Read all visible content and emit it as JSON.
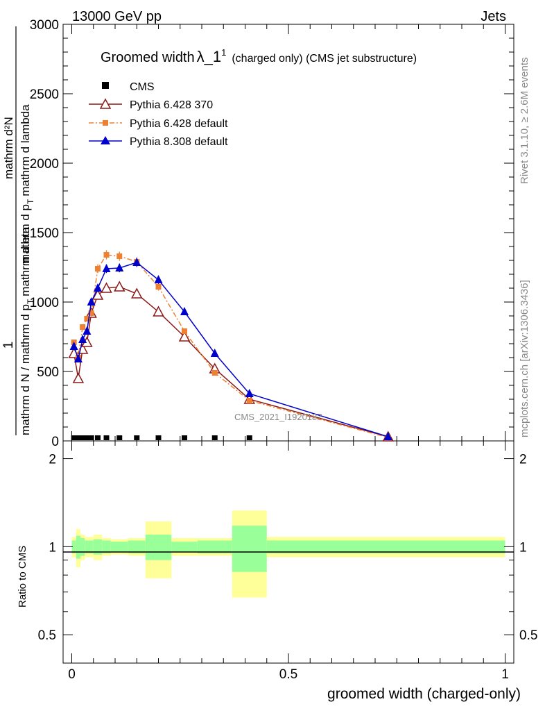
{
  "header": {
    "left": "13000 GeV pp",
    "right": "Jets"
  },
  "side": {
    "rivet": "Rivet 3.1.10, ≥ 2.6M events",
    "mcplots": "mcplots.cern.ch [arXiv:1306.3436]"
  },
  "colors": {
    "cms": "#000000",
    "py6_370": "#8b1a1a",
    "py6_default": "#f08030",
    "py8": "#0000cc",
    "band_inner": "#99ff99",
    "band_outer": "#ffff99"
  },
  "chart_data": [
    {
      "type": "line",
      "title": "Groomed width λ_1^1 (charged only) (CMS jet substructure)",
      "title_main": "Groomed width",
      "title_sym": "λ_1",
      "title_sup": "1",
      "title_rest": "(charged only) (CMS jet substructure)",
      "ylabel": "1 / mathrm d N / mathrm d p_T mathrm d eta   mathrm d^2N / mathrm d p_T mathrm d lambda",
      "ylabel_parts": {
        "one": "1",
        "lower": "mathrm d N / mathrm d p",
        "lower_sub": "T",
        "lower_rest": "mathrm d eta",
        "upper": "mathrm d²N",
        "upper_rest": "mathrm d p",
        "upper_sub": "T",
        "upper_end": "mathrm d lambda"
      },
      "watermark": "CMS_2021_I1920187",
      "xlim": [
        -0.02,
        1.02
      ],
      "ylim": [
        0,
        3000
      ],
      "yticks": [
        0,
        500,
        1000,
        1500,
        2000,
        2500,
        3000
      ],
      "ytick_labels": [
        "0",
        "500",
        "1000",
        "1500",
        "2000",
        "2500",
        "3000"
      ],
      "legend": [
        {
          "name": "CMS",
          "marker": "square"
        },
        {
          "name": "Pythia 6.428 370",
          "marker": "open-triangle"
        },
        {
          "name": "Pythia 6.428 default",
          "marker": "small-square"
        },
        {
          "name": "Pythia 8.308 default",
          "marker": "filled-triangle"
        }
      ],
      "series": [
        {
          "name": "CMS",
          "x": [
            0.005,
            0.015,
            0.025,
            0.035,
            0.045,
            0.06,
            0.08,
            0.11,
            0.15,
            0.2,
            0.26,
            0.33,
            0.41,
            0.73
          ],
          "y": [
            0,
            0,
            0,
            0,
            0,
            0,
            0,
            0,
            0,
            0,
            0,
            0,
            0,
            0
          ]
        },
        {
          "name": "Pythia 6.428 370",
          "x": [
            0.005,
            0.015,
            0.025,
            0.035,
            0.045,
            0.06,
            0.08,
            0.11,
            0.15,
            0.2,
            0.26,
            0.33,
            0.41,
            0.73
          ],
          "y": [
            630,
            450,
            660,
            710,
            920,
            1050,
            1100,
            1110,
            1060,
            930,
            750,
            520,
            300,
            30
          ]
        },
        {
          "name": "Pythia 6.428 default",
          "x": [
            0.005,
            0.015,
            0.025,
            0.035,
            0.045,
            0.06,
            0.08,
            0.11,
            0.15,
            0.2,
            0.26,
            0.33,
            0.41,
            0.73
          ],
          "y": [
            710,
            600,
            820,
            880,
            920,
            1240,
            1340,
            1330,
            1290,
            1110,
            790,
            490,
            290,
            25
          ]
        },
        {
          "name": "Pythia 8.308 default",
          "x": [
            0.005,
            0.015,
            0.025,
            0.035,
            0.045,
            0.06,
            0.08,
            0.11,
            0.15,
            0.2,
            0.26,
            0.33,
            0.41,
            0.73
          ],
          "y": [
            680,
            590,
            730,
            790,
            1000,
            1100,
            1240,
            1245,
            1285,
            1160,
            930,
            630,
            340,
            30
          ]
        }
      ]
    },
    {
      "type": "area",
      "xlabel": "groomed width (charged-only)",
      "ylabel": "Ratio to CMS",
      "ylim": [
        0.4,
        2.3
      ],
      "xlim": [
        -0.02,
        1.02
      ],
      "xticks": [
        0,
        0.5,
        1
      ],
      "xtick_labels": [
        "0",
        "0.5",
        "1"
      ],
      "yticks_labeled": [
        0.5,
        1,
        2
      ],
      "ytick_labels": [
        "0.5",
        "1",
        "2"
      ],
      "bands": [
        {
          "x0": 0.0,
          "x1": 0.01,
          "inner": 0.05,
          "outer": 0.08
        },
        {
          "x0": 0.01,
          "x1": 0.02,
          "inner": 0.09,
          "outer": 0.15
        },
        {
          "x0": 0.02,
          "x1": 0.03,
          "inner": 0.07,
          "outer": 0.1
        },
        {
          "x0": 0.03,
          "x1": 0.05,
          "inner": 0.05,
          "outer": 0.08
        },
        {
          "x0": 0.05,
          "x1": 0.07,
          "inner": 0.06,
          "outer": 0.1
        },
        {
          "x0": 0.07,
          "x1": 0.09,
          "inner": 0.05,
          "outer": 0.07
        },
        {
          "x0": 0.09,
          "x1": 0.13,
          "inner": 0.04,
          "outer": 0.06
        },
        {
          "x0": 0.13,
          "x1": 0.17,
          "inner": 0.05,
          "outer": 0.07
        },
        {
          "x0": 0.17,
          "x1": 0.23,
          "inner": 0.1,
          "outer": 0.22
        },
        {
          "x0": 0.23,
          "x1": 0.29,
          "inner": 0.04,
          "outer": 0.07
        },
        {
          "x0": 0.29,
          "x1": 0.37,
          "inner": 0.05,
          "outer": 0.07
        },
        {
          "x0": 0.37,
          "x1": 0.45,
          "inner": 0.18,
          "outer": 0.33
        },
        {
          "x0": 0.45,
          "x1": 1.0,
          "inner": 0.05,
          "outer": 0.08
        }
      ]
    }
  ]
}
